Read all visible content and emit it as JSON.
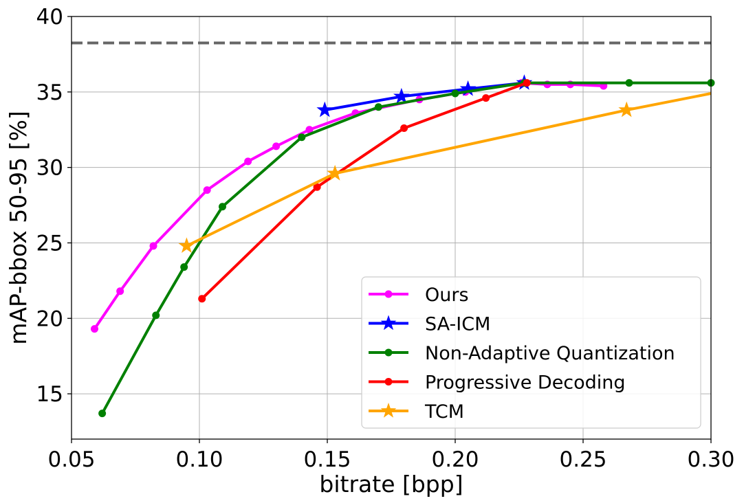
{
  "chart_data": {
    "type": "line",
    "title": "",
    "xlabel": "bitrate [bpp]",
    "ylabel": "mAP-bbox 50-95 [%]",
    "xlim": [
      0.05,
      0.3
    ],
    "ylim": [
      12.0,
      40.0
    ],
    "x_ticks": [
      "0.05",
      "0.10",
      "0.15",
      "0.20",
      "0.25",
      "0.30"
    ],
    "y_ticks": [
      "15",
      "20",
      "25",
      "30",
      "35",
      "40"
    ],
    "grid": true,
    "legend_position": "bottom-right",
    "reference_line": {
      "y": 38.25,
      "style": "dashed",
      "color": "#666666"
    },
    "series": [
      {
        "name": "Ours",
        "color": "#ff00ff",
        "marker": "circle",
        "x": [
          0.059,
          0.069,
          0.082,
          0.103,
          0.119,
          0.13,
          0.143,
          0.161,
          0.186,
          0.204,
          0.226,
          0.236,
          0.245,
          0.258
        ],
        "y": [
          19.3,
          21.8,
          24.8,
          28.5,
          30.4,
          31.4,
          32.5,
          33.6,
          34.5,
          35.0,
          35.6,
          35.5,
          35.5,
          35.4
        ]
      },
      {
        "name": "SA-ICM",
        "color": "#0000ff",
        "marker": "star",
        "x": [
          0.149,
          0.179,
          0.205,
          0.227
        ],
        "y": [
          33.8,
          34.7,
          35.2,
          35.6
        ]
      },
      {
        "name": "Non-Adaptive Quantization",
        "color": "#008000",
        "marker": "circle",
        "x": [
          0.062,
          0.083,
          0.094,
          0.109,
          0.14,
          0.17,
          0.2,
          0.227,
          0.268,
          0.3
        ],
        "y": [
          13.7,
          20.2,
          23.4,
          27.4,
          32.0,
          34.0,
          34.9,
          35.6,
          35.6,
          35.6
        ]
      },
      {
        "name": "Progressive Decoding",
        "color": "#ff0000",
        "marker": "circle",
        "x": [
          0.101,
          0.146,
          0.18,
          0.212,
          0.228
        ],
        "y": [
          21.3,
          28.7,
          32.6,
          34.6,
          35.6
        ]
      },
      {
        "name": "TCM",
        "color": "#ffa500",
        "marker": "star",
        "x": [
          0.095,
          0.153,
          0.267,
          0.3
        ],
        "y": [
          24.8,
          29.6,
          33.8,
          34.9
        ],
        "marker_count": 3
      }
    ]
  }
}
